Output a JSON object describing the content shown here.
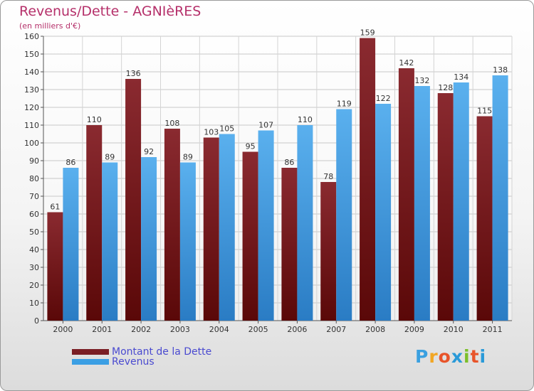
{
  "header": {
    "title": "Revenus/Dette - AGNIèRES",
    "unit": "(en milliers d'€)"
  },
  "logo": {
    "letters": [
      "P",
      "r",
      "o",
      "x",
      "i",
      "t",
      "i"
    ],
    "colors": [
      "#3aa0e0",
      "#f2a623",
      "#e8542a",
      "#2a9ad8",
      "#7cbf2a",
      "#e8542a",
      "#2a9ad8"
    ]
  },
  "chart_data": {
    "type": "bar",
    "categories": [
      "2000",
      "2001",
      "2002",
      "2003",
      "2004",
      "2005",
      "2006",
      "2007",
      "2008",
      "2009",
      "2010",
      "2011"
    ],
    "series": [
      {
        "name": "Montant de la Dette",
        "color": "#7a1e24",
        "values": [
          61,
          110,
          136,
          108,
          103,
          95,
          86,
          78,
          159,
          142,
          128,
          115
        ]
      },
      {
        "name": "Revenus",
        "color": "#3b9fe4",
        "values": [
          86,
          89,
          92,
          89,
          105,
          107,
          110,
          119,
          122,
          132,
          134,
          138
        ]
      }
    ],
    "ylim": [
      0,
      160
    ],
    "yticks": [
      0,
      10,
      20,
      30,
      40,
      50,
      60,
      70,
      80,
      90,
      100,
      110,
      120,
      130,
      140,
      150,
      160
    ],
    "grid": true,
    "legend": "bottom-left"
  }
}
